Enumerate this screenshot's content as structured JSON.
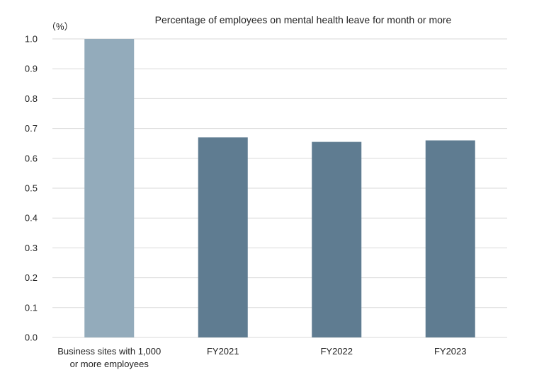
{
  "chart_data": {
    "type": "bar",
    "title": "Percentage of employees on mental health leave for month or more",
    "unit_label": "（%）",
    "xlabel": "",
    "ylabel": "",
    "ylim": [
      0,
      1.0
    ],
    "yticks": [
      "0.0",
      "0.1",
      "0.2",
      "0.3",
      "0.4",
      "0.5",
      "0.6",
      "0.7",
      "0.8",
      "0.9",
      "1.0"
    ],
    "grid": true,
    "categories": [
      [
        "Business sites with 1,000",
        "or more employees"
      ],
      [
        "FY2021"
      ],
      [
        "FY2022"
      ],
      [
        "FY2023"
      ]
    ],
    "values": [
      1.0,
      0.67,
      0.655,
      0.66
    ],
    "colors": [
      "#93abbb",
      "#5f7c91",
      "#5f7c91",
      "#5f7c91"
    ]
  }
}
